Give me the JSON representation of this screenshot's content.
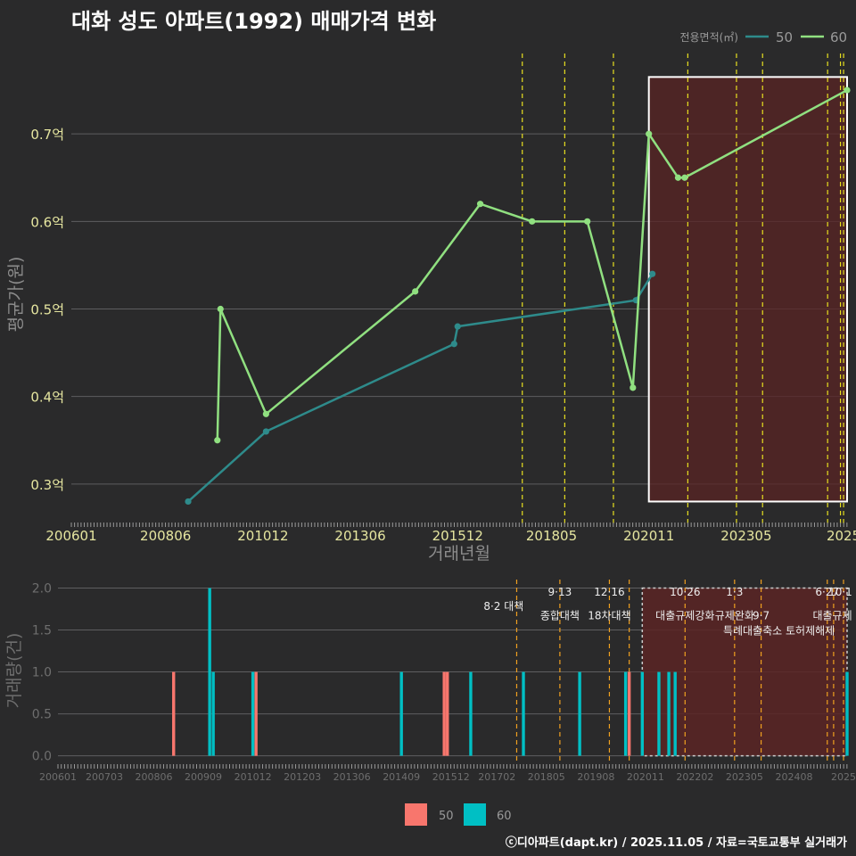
{
  "title": "대화 성도 아파트(1992) 매매가격 변화",
  "credit": "ⓒ디아파트(dapt.kr) / 2025.11.05 / 자료=국토교통부 실거래가",
  "colors": {
    "background": "#2a2a2b",
    "series_50_line": "#2e8b8b",
    "series_60_line": "#90e080",
    "bar_50": "#f8766d",
    "bar_60": "#00bfc4",
    "policy_line": "#e8e020",
    "policy_line_bottom": "#f0a020",
    "highlight_fill": "#5a2424"
  },
  "chart_data": [
    {
      "type": "line",
      "title": "대화 성도 아파트(1992) 매매가격 변화",
      "xlabel": "거래년월",
      "ylabel": "평균가(원)",
      "ylim": [
        0.255,
        0.8
      ],
      "xlim": [
        2006.0,
        2025.92
      ],
      "yticks": [
        0.3,
        0.4,
        0.5,
        0.6,
        0.7
      ],
      "ytick_labels": [
        "0.3억",
        "0.4억",
        "0.5억",
        "0.6억",
        "0.7억"
      ],
      "xticks": [
        2006.0,
        2008.42,
        2010.92,
        2013.42,
        2015.92,
        2018.33,
        2020.83,
        2023.33,
        2025.83
      ],
      "xtick_labels": [
        "200601",
        "200806",
        "201012",
        "201306",
        "201512",
        "201805",
        "202011",
        "202305",
        "2025"
      ],
      "legend_title": "전용면적(㎡)",
      "legend": [
        "50",
        "60"
      ],
      "legend_position": "top-right",
      "highlight_range": [
        2020.83,
        2025.92,
        0.28,
        0.765
      ],
      "policy_dates": [
        2017.58,
        2018.67,
        2019.92,
        2021.83,
        2023.08,
        2023.75,
        2025.42,
        2025.75,
        2025.83
      ],
      "series": [
        {
          "name": "50",
          "x": [
            2009.0,
            2011.0,
            2015.83,
            2015.92,
            2020.5,
            2020.92
          ],
          "y": [
            0.28,
            0.36,
            0.46,
            0.48,
            0.51,
            0.54
          ]
        },
        {
          "name": "60",
          "x": [
            2009.75,
            2009.83,
            2011.0,
            2014.83,
            2016.5,
            2017.83,
            2019.25,
            2020.42,
            2020.83,
            2021.58,
            2021.75,
            2025.92
          ],
          "y": [
            0.35,
            0.5,
            0.38,
            0.52,
            0.62,
            0.6,
            0.6,
            0.41,
            0.7,
            0.65,
            0.65,
            0.75
          ]
        }
      ]
    },
    {
      "type": "bar",
      "xlabel": "",
      "ylabel": "거래량(건)",
      "ylim": [
        -0.1,
        2.08
      ],
      "xlim": [
        2006.0,
        2025.92
      ],
      "yticks": [
        0.0,
        0.5,
        1.0,
        1.5,
        2.0
      ],
      "ytick_labels": [
        "0.0",
        "0.5",
        "1.0",
        "1.5",
        "2.0"
      ],
      "xticks": [
        2006.0,
        2007.17,
        2008.42,
        2009.67,
        2010.92,
        2012.17,
        2013.42,
        2014.67,
        2015.92,
        2017.08,
        2018.33,
        2019.58,
        2020.83,
        2022.08,
        2023.33,
        2024.58,
        2025.83
      ],
      "xtick_labels": [
        "200601",
        "200703",
        "200806",
        "200909",
        "201012",
        "201203",
        "201306",
        "201409",
        "201512",
        "201702",
        "201805",
        "201908",
        "202011",
        "202202",
        "202305",
        "202408",
        "2025"
      ],
      "highlight_range": [
        2020.75,
        2025.92
      ],
      "policy_dates": [
        2017.58,
        2018.67,
        2019.92,
        2020.42,
        2021.83,
        2023.08,
        2023.75,
        2025.42,
        2025.58,
        2025.83
      ],
      "annotations": [
        {
          "text": "8·2 대책",
          "x": 2017.25,
          "y": 1.78
        },
        {
          "text": "9·13",
          "x": 2018.67,
          "y": 1.95
        },
        {
          "text": "종합대책",
          "x": 2018.67,
          "y": 1.67
        },
        {
          "text": "12·16",
          "x": 2019.92,
          "y": 1.95
        },
        {
          "text": "18차대책",
          "x": 2019.92,
          "y": 1.67
        },
        {
          "text": "10·26",
          "x": 2021.83,
          "y": 1.95
        },
        {
          "text": "대출규제강화",
          "x": 2021.83,
          "y": 1.67
        },
        {
          "text": "1·3",
          "x": 2023.08,
          "y": 1.95
        },
        {
          "text": "규제완화",
          "x": 2023.08,
          "y": 1.67
        },
        {
          "text": "9·7",
          "x": 2023.75,
          "y": 1.67
        },
        {
          "text": "특례대출축소 토허제해제",
          "x": 2024.2,
          "y": 1.49
        },
        {
          "text": "6·27",
          "x": 2025.42,
          "y": 1.95
        },
        {
          "text": "10·1",
          "x": 2025.75,
          "y": 1.95
        },
        {
          "text": "대출규제",
          "x": 2025.55,
          "y": 1.67
        }
      ],
      "series": [
        {
          "name": "50",
          "x": [
            2008.92,
            2011.0,
            2015.75,
            2015.83,
            2020.42
          ],
          "values": [
            1,
            1,
            1,
            1,
            1
          ]
        },
        {
          "name": "60",
          "x": [
            2009.83,
            2009.92,
            2010.92,
            2014.67,
            2016.42,
            2017.75,
            2019.17,
            2020.33,
            2020.75,
            2021.17,
            2021.42,
            2021.58,
            2025.92
          ],
          "values": [
            2,
            1,
            1,
            1,
            1,
            1,
            1,
            1,
            1,
            1,
            1,
            1,
            1
          ]
        }
      ],
      "legend": [
        "50",
        "60"
      ],
      "legend_position": "bottom"
    }
  ]
}
